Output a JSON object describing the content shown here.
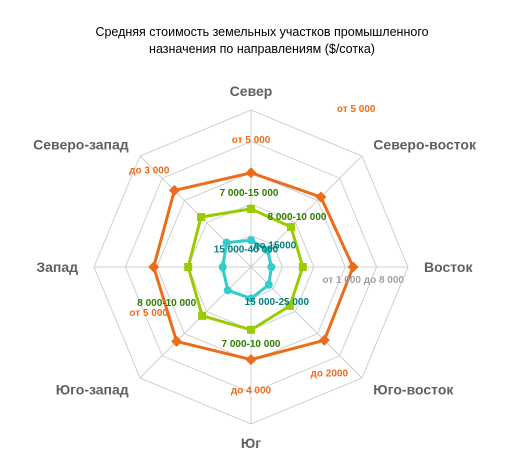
{
  "chart_data": {
    "type": "radar",
    "title_lines": [
      "Средняя стоимость земельных участков промышленного",
      "назначения по направлениям ($/сотка)"
    ],
    "categories": [
      "Север",
      "Северо-восток",
      "Восток",
      "Юго-восток",
      "Юг",
      "Юго-запад",
      "Запад",
      "Северо-запад"
    ],
    "rlim": [
      0,
      10
    ],
    "grid": true,
    "series": [
      {
        "color": "#ED6C1C",
        "marker": "diamond",
        "values": [
          6.0,
          6.3,
          6.5,
          6.6,
          5.9,
          6.7,
          6.2,
          6.9
        ],
        "labels": [
          "от 5 000",
          "от 5 000",
          "",
          "до 2000",
          "до 4 000",
          "",
          "от 5 000",
          "до 3 000"
        ],
        "label_color": "#ED6C1C"
      },
      {
        "color": "#99CC00",
        "marker": "square",
        "values": [
          3.7,
          3.6,
          3.3,
          3.5,
          4.0,
          4.4,
          4.0,
          4.5
        ],
        "labels": [
          "7 000-15 000",
          "8 000-10 000",
          "",
          "",
          "7 000-10 000",
          "8 000-10 000",
          "",
          ""
        ],
        "label_color": "#2E7D00"
      },
      {
        "color": "#33CCCC",
        "marker": "circle",
        "values": [
          1.7,
          1.5,
          1.3,
          1.6,
          2.0,
          2.1,
          1.8,
          2.2
        ],
        "labels": [
          "15 000-40 000",
          "до 15000",
          "",
          "15 000-25 000",
          "",
          "",
          "",
          ""
        ],
        "label_color": "#008080"
      }
    ],
    "extra_labels": [
      {
        "text": "от 1 000 до 8 000",
        "color": "#A0A0A0"
      }
    ]
  }
}
